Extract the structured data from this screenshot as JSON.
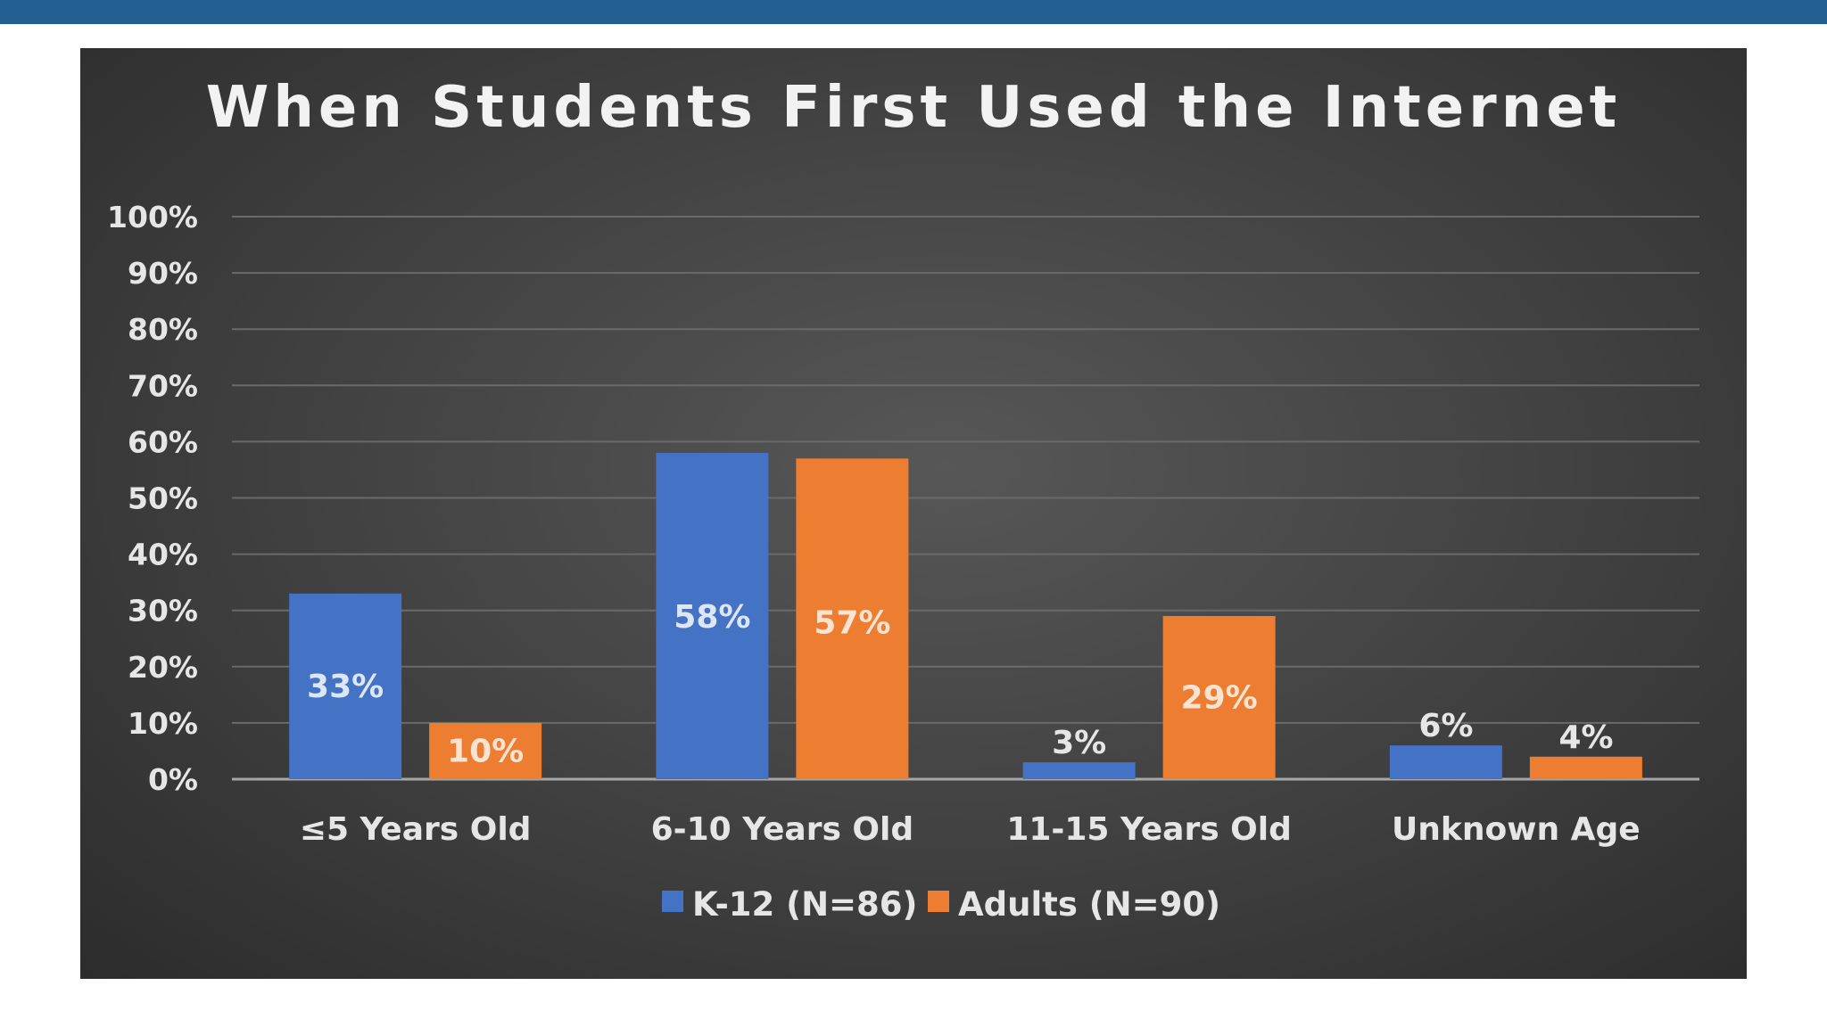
{
  "chart_data": {
    "type": "bar",
    "title": "When Students First Used the Internet",
    "categories": [
      "≤5 Years Old",
      "6-10 Years Old",
      "11-15 Years Old",
      "Unknown Age"
    ],
    "series": [
      {
        "name": "K-12 (N=86)",
        "values": [
          33,
          58,
          3,
          6
        ],
        "labels": [
          "33%",
          "58%",
          "3%",
          "6%"
        ],
        "color": "#4472c4"
      },
      {
        "name": "Adults (N=90)",
        "values": [
          10,
          57,
          29,
          4
        ],
        "labels": [
          "10%",
          "57%",
          "29%",
          "4%"
        ],
        "color": "#ed7d31"
      }
    ],
    "y_ticks": [
      "0%",
      "10%",
      "20%",
      "30%",
      "40%",
      "50%",
      "60%",
      "70%",
      "80%",
      "90%",
      "100%"
    ],
    "ylim": [
      0,
      100
    ],
    "grid": true,
    "legend_position": "bottom"
  }
}
